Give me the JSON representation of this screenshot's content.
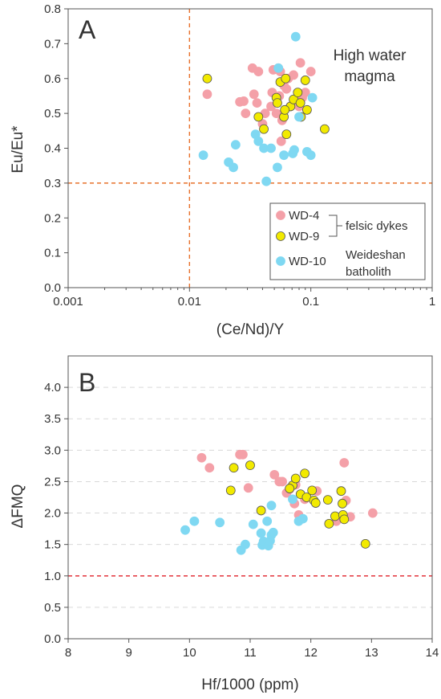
{
  "chart_data": [
    {
      "type": "scatter",
      "panel": "A",
      "xlabel": "(Ce/Nd)/Y",
      "ylabel": "Eu/Eu*",
      "xscale": "log",
      "xlim": [
        0.001,
        1
      ],
      "ylim": [
        0,
        0.8
      ],
      "xticks": [
        "0.001",
        "0.01",
        "0.1",
        "1"
      ],
      "yticks": [
        "0.0",
        "0.1",
        "0.2",
        "0.3",
        "0.4",
        "0.5",
        "0.6",
        "0.7",
        "0.8"
      ],
      "annotation": "High water magma",
      "reference_lines": {
        "x": 0.01,
        "y": 0.3,
        "color": "#E8702A"
      },
      "series": [
        {
          "name": "WD-4",
          "color": "#F4A0A8",
          "points": [
            [
              0.014,
              0.555
            ],
            [
              0.026,
              0.533
            ],
            [
              0.028,
              0.535
            ],
            [
              0.029,
              0.5
            ],
            [
              0.033,
              0.63
            ],
            [
              0.034,
              0.555
            ],
            [
              0.036,
              0.53
            ],
            [
              0.037,
              0.62
            ],
            [
              0.04,
              0.47
            ],
            [
              0.042,
              0.5
            ],
            [
              0.047,
              0.52
            ],
            [
              0.048,
              0.56
            ],
            [
              0.049,
              0.625
            ],
            [
              0.052,
              0.5
            ],
            [
              0.055,
              0.55
            ],
            [
              0.056,
              0.62
            ],
            [
              0.058,
              0.48
            ],
            [
              0.06,
              0.58
            ],
            [
              0.063,
              0.57
            ],
            [
              0.065,
              0.6
            ],
            [
              0.068,
              0.52
            ],
            [
              0.072,
              0.61
            ],
            [
              0.075,
              0.54
            ],
            [
              0.08,
              0.52
            ],
            [
              0.082,
              0.645
            ],
            [
              0.085,
              0.545
            ],
            [
              0.09,
              0.56
            ],
            [
              0.1,
              0.62
            ],
            [
              0.057,
              0.42
            ],
            [
              0.054,
              0.63
            ]
          ]
        },
        {
          "name": "WD-9",
          "color": "#F2EA00",
          "points": [
            [
              0.014,
              0.6
            ],
            [
              0.037,
              0.49
            ],
            [
              0.041,
              0.455
            ],
            [
              0.052,
              0.545
            ],
            [
              0.053,
              0.53
            ],
            [
              0.056,
              0.59
            ],
            [
              0.06,
              0.49
            ],
            [
              0.062,
              0.6
            ],
            [
              0.063,
              0.44
            ],
            [
              0.068,
              0.52
            ],
            [
              0.072,
              0.54
            ],
            [
              0.078,
              0.56
            ],
            [
              0.082,
              0.53
            ],
            [
              0.083,
              0.49
            ],
            [
              0.09,
              0.595
            ],
            [
              0.093,
              0.51
            ],
            [
              0.13,
              0.455
            ],
            [
              0.061,
              0.51
            ]
          ]
        },
        {
          "name": "WD-10",
          "color": "#7FD8F2",
          "points": [
            [
              0.013,
              0.38
            ],
            [
              0.021,
              0.36
            ],
            [
              0.023,
              0.345
            ],
            [
              0.024,
              0.41
            ],
            [
              0.035,
              0.44
            ],
            [
              0.037,
              0.42
            ],
            [
              0.041,
              0.4
            ],
            [
              0.043,
              0.305
            ],
            [
              0.047,
              0.4
            ],
            [
              0.053,
              0.345
            ],
            [
              0.054,
              0.63
            ],
            [
              0.06,
              0.38
            ],
            [
              0.071,
              0.385
            ],
            [
              0.073,
              0.395
            ],
            [
              0.075,
              0.72
            ],
            [
              0.08,
              0.49
            ],
            [
              0.093,
              0.39
            ],
            [
              0.1,
              0.38
            ],
            [
              0.103,
              0.545
            ]
          ]
        }
      ],
      "legend": {
        "placement": "lower-right",
        "entries": [
          "WD-4",
          "WD-9",
          "WD-10"
        ],
        "group_labels": {
          "felsic": "felsic dykes",
          "batholith_line1": "Weideshan",
          "batholith_line2": "batholith"
        }
      }
    },
    {
      "type": "scatter",
      "panel": "B",
      "xlabel": "Hf/1000 (ppm)",
      "ylabel": "ΔFMQ",
      "xlim": [
        8,
        14
      ],
      "ylim": [
        0,
        4.5
      ],
      "xticks": [
        "8",
        "9",
        "10",
        "11",
        "12",
        "13",
        "14"
      ],
      "yticks": [
        "0.0",
        "0.5",
        "1.0",
        "1.5",
        "2.0",
        "2.5",
        "3.0",
        "3.5",
        "4.0"
      ],
      "grid": "horizontal dashed",
      "reference_lines": {
        "y": 1.0,
        "color": "#E0202A"
      },
      "series": [
        {
          "name": "WD-4",
          "color": "#F4A0A8",
          "points": [
            [
              10.2,
              2.88
            ],
            [
              10.33,
              2.72
            ],
            [
              10.83,
              2.93
            ],
            [
              10.88,
              2.93
            ],
            [
              10.97,
              2.4
            ],
            [
              11.4,
              2.61
            ],
            [
              11.48,
              2.5
            ],
            [
              11.53,
              2.5
            ],
            [
              11.6,
              2.32
            ],
            [
              11.73,
              2.15
            ],
            [
              11.75,
              2.45
            ],
            [
              11.8,
              1.97
            ],
            [
              11.9,
              2.22
            ],
            [
              12.1,
              2.35
            ],
            [
              12.55,
              2.8
            ],
            [
              12.58,
              2.2
            ],
            [
              12.65,
              1.94
            ],
            [
              13.02,
              2.0
            ],
            [
              12.42,
              1.87
            ],
            [
              11.65,
              2.38
            ]
          ]
        },
        {
          "name": "WD-9",
          "color": "#F2EA00",
          "points": [
            [
              10.68,
              2.36
            ],
            [
              10.73,
              2.72
            ],
            [
              11.0,
              2.76
            ],
            [
              11.18,
              2.04
            ],
            [
              11.7,
              2.44
            ],
            [
              11.75,
              2.55
            ],
            [
              11.83,
              2.3
            ],
            [
              11.9,
              2.63
            ],
            [
              11.93,
              2.25
            ],
            [
              12.05,
              2.2
            ],
            [
              12.08,
              2.16
            ],
            [
              12.28,
              2.21
            ],
            [
              12.3,
              1.83
            ],
            [
              12.4,
              1.95
            ],
            [
              12.5,
              2.35
            ],
            [
              12.52,
              2.15
            ],
            [
              12.53,
              1.97
            ],
            [
              12.55,
              1.9
            ],
            [
              12.9,
              1.51
            ],
            [
              12.02,
              2.36
            ],
            [
              11.65,
              2.39
            ]
          ]
        },
        {
          "name": "WD-10",
          "color": "#7FD8F2",
          "points": [
            [
              9.93,
              1.73
            ],
            [
              10.08,
              1.87
            ],
            [
              10.5,
              1.85
            ],
            [
              10.85,
              1.41
            ],
            [
              10.92,
              1.5
            ],
            [
              11.05,
              1.82
            ],
            [
              11.18,
              1.68
            ],
            [
              11.2,
              1.49
            ],
            [
              11.22,
              1.55
            ],
            [
              11.28,
              1.87
            ],
            [
              11.3,
              1.48
            ],
            [
              11.33,
              1.56
            ],
            [
              11.35,
              1.65
            ],
            [
              11.38,
              1.69
            ],
            [
              11.35,
              2.12
            ],
            [
              11.7,
              2.22
            ],
            [
              11.8,
              1.87
            ],
            [
              11.87,
              1.91
            ]
          ]
        }
      ]
    }
  ]
}
